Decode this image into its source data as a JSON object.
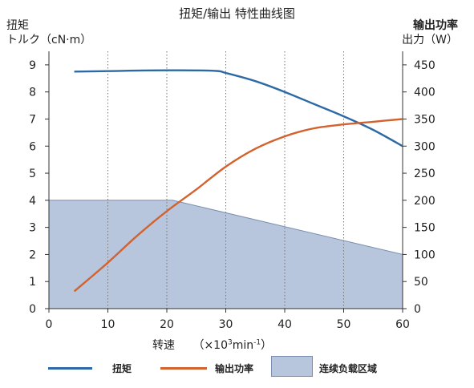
{
  "title": "扭矩/输出 特性曲线图",
  "left_axis": {
    "line1": "扭矩",
    "line2": "トルク（cN·m）"
  },
  "right_axis": {
    "line1": "输出功率",
    "line2": "出力（W）"
  },
  "x_axis": {
    "label_prefix": "转速",
    "label_unit_a": "（×10",
    "label_unit_sup": "3",
    "label_unit_b": "min",
    "label_unit_sup2": "-1",
    "label_unit_c": "）"
  },
  "legend": {
    "torque": "扭矩",
    "power": "输出功率",
    "continuous": "连续负载区域"
  },
  "colors": {
    "torque": "#2d6aa5",
    "power": "#d2622e",
    "area_fill": "#b7c6dd",
    "area_stroke": "#7a8fae"
  },
  "chart_data": {
    "type": "line",
    "x_ticks": [
      0,
      10,
      20,
      30,
      40,
      50,
      60
    ],
    "y_left_ticks": [
      0,
      1,
      2,
      3,
      4,
      5,
      6,
      7,
      8,
      9
    ],
    "y_right_ticks": [
      0,
      50,
      100,
      150,
      200,
      250,
      300,
      350,
      400,
      450
    ],
    "xlim": [
      0,
      60
    ],
    "ylim_left": [
      0,
      9.5
    ],
    "ylim_right": [
      0,
      475
    ],
    "grid": "vertical",
    "series": [
      {
        "name": "扭矩",
        "axis": "left",
        "x": [
          4.3,
          10,
          20,
          28,
          30,
          35,
          40,
          45,
          50,
          55,
          60
        ],
        "y": [
          8.75,
          8.77,
          8.8,
          8.78,
          8.7,
          8.4,
          8.0,
          7.55,
          7.1,
          6.6,
          6.0
        ]
      },
      {
        "name": "输出功率",
        "axis": "right",
        "x": [
          4.3,
          10,
          15,
          20,
          25,
          30,
          35,
          40,
          45,
          50,
          55,
          60
        ],
        "y": [
          32,
          85,
          135,
          180,
          220,
          262,
          295,
          318,
          333,
          340,
          345,
          350
        ]
      },
      {
        "name": "连续负载区域",
        "axis": "left",
        "type": "area",
        "x": [
          0,
          21,
          60
        ],
        "y": [
          4.0,
          4.0,
          2.0
        ]
      }
    ]
  }
}
